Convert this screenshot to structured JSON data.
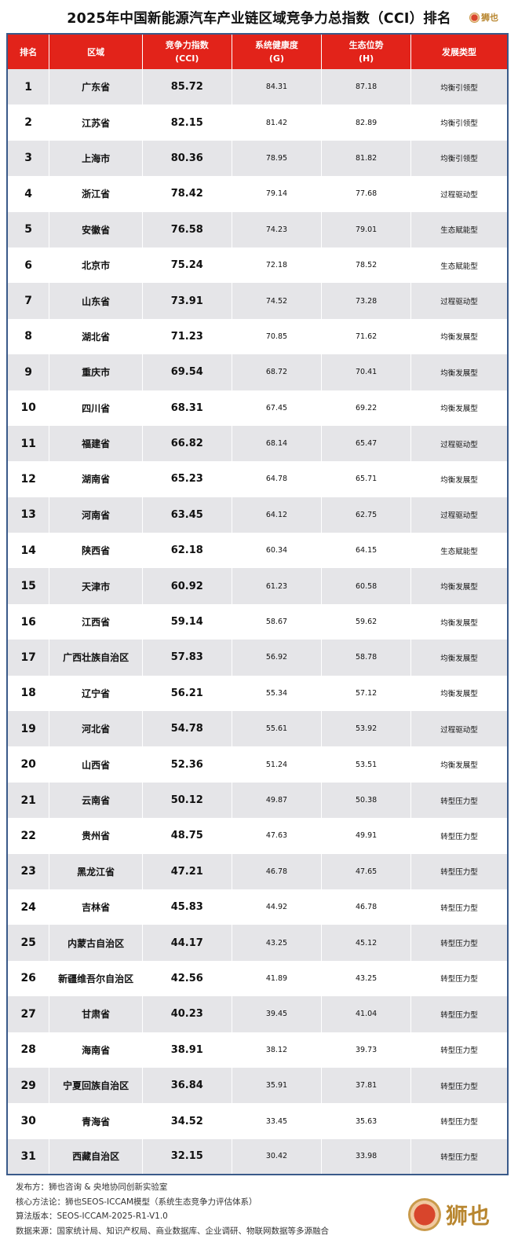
{
  "title": "2025年中国新能源汽车产业链区域竞争力总指数（CCI）排名",
  "logo_text": "狮也",
  "colors": {
    "header_red": "#e2231a",
    "row_gray": "#e5e5e8",
    "logo_gold": "#b8862f"
  },
  "headers": {
    "rank": "排名",
    "region": "区域",
    "cci_1": "竞争力指数",
    "cci_2": "(CCI)",
    "g_1": "系统健康度",
    "g_2": "(G)",
    "h_1": "生态位势",
    "h_2": "(H)",
    "type": "发展类型"
  },
  "rows": [
    [
      "1",
      "广东省",
      "85.72",
      "84.31",
      "87.18",
      "均衡引领型"
    ],
    [
      "2",
      "江苏省",
      "82.15",
      "81.42",
      "82.89",
      "均衡引领型"
    ],
    [
      "3",
      "上海市",
      "80.36",
      "78.95",
      "81.82",
      "均衡引领型"
    ],
    [
      "4",
      "浙江省",
      "78.42",
      "79.14",
      "77.68",
      "过程驱动型"
    ],
    [
      "5",
      "安徽省",
      "76.58",
      "74.23",
      "79.01",
      "生态赋能型"
    ],
    [
      "6",
      "北京市",
      "75.24",
      "72.18",
      "78.52",
      "生态赋能型"
    ],
    [
      "7",
      "山东省",
      "73.91",
      "74.52",
      "73.28",
      "过程驱动型"
    ],
    [
      "8",
      "湖北省",
      "71.23",
      "70.85",
      "71.62",
      "均衡发展型"
    ],
    [
      "9",
      "重庆市",
      "69.54",
      "68.72",
      "70.41",
      "均衡发展型"
    ],
    [
      "10",
      "四川省",
      "68.31",
      "67.45",
      "69.22",
      "均衡发展型"
    ],
    [
      "11",
      "福建省",
      "66.82",
      "68.14",
      "65.47",
      "过程驱动型"
    ],
    [
      "12",
      "湖南省",
      "65.23",
      "64.78",
      "65.71",
      "均衡发展型"
    ],
    [
      "13",
      "河南省",
      "63.45",
      "64.12",
      "62.75",
      "过程驱动型"
    ],
    [
      "14",
      "陕西省",
      "62.18",
      "60.34",
      "64.15",
      "生态赋能型"
    ],
    [
      "15",
      "天津市",
      "60.92",
      "61.23",
      "60.58",
      "均衡发展型"
    ],
    [
      "16",
      "江西省",
      "59.14",
      "58.67",
      "59.62",
      "均衡发展型"
    ],
    [
      "17",
      "广西壮族自治区",
      "57.83",
      "56.92",
      "58.78",
      "均衡发展型"
    ],
    [
      "18",
      "辽宁省",
      "56.21",
      "55.34",
      "57.12",
      "均衡发展型"
    ],
    [
      "19",
      "河北省",
      "54.78",
      "55.61",
      "53.92",
      "过程驱动型"
    ],
    [
      "20",
      "山西省",
      "52.36",
      "51.24",
      "53.51",
      "均衡发展型"
    ],
    [
      "21",
      "云南省",
      "50.12",
      "49.87",
      "50.38",
      "转型压力型"
    ],
    [
      "22",
      "贵州省",
      "48.75",
      "47.63",
      "49.91",
      "转型压力型"
    ],
    [
      "23",
      "黑龙江省",
      "47.21",
      "46.78",
      "47.65",
      "转型压力型"
    ],
    [
      "24",
      "吉林省",
      "45.83",
      "44.92",
      "46.78",
      "转型压力型"
    ],
    [
      "25",
      "内蒙古自治区",
      "44.17",
      "43.25",
      "45.12",
      "转型压力型"
    ],
    [
      "26",
      "新疆维吾尔自治区",
      "42.56",
      "41.89",
      "43.25",
      "转型压力型"
    ],
    [
      "27",
      "甘肃省",
      "40.23",
      "39.45",
      "41.04",
      "转型压力型"
    ],
    [
      "28",
      "海南省",
      "38.91",
      "38.12",
      "39.73",
      "转型压力型"
    ],
    [
      "29",
      "宁夏回族自治区",
      "36.84",
      "35.91",
      "37.81",
      "转型压力型"
    ],
    [
      "30",
      "青海省",
      "34.52",
      "33.45",
      "35.63",
      "转型压力型"
    ],
    [
      "31",
      "西藏自治区",
      "32.15",
      "30.42",
      "33.98",
      "转型压力型"
    ]
  ],
  "footer": {
    "publisher": "发布方：狮也咨询 & 央地协同创新实验室",
    "method": "核心方法论：狮也SEOS-ICCAM模型（系统生态竞争力评估体系）",
    "version": "算法版本：SEOS-ICCAM-2025-R1-V1.0",
    "source": "数据来源：国家统计局、知识产权局、商业数据库、企业调研、物联网数据等多源融合"
  }
}
